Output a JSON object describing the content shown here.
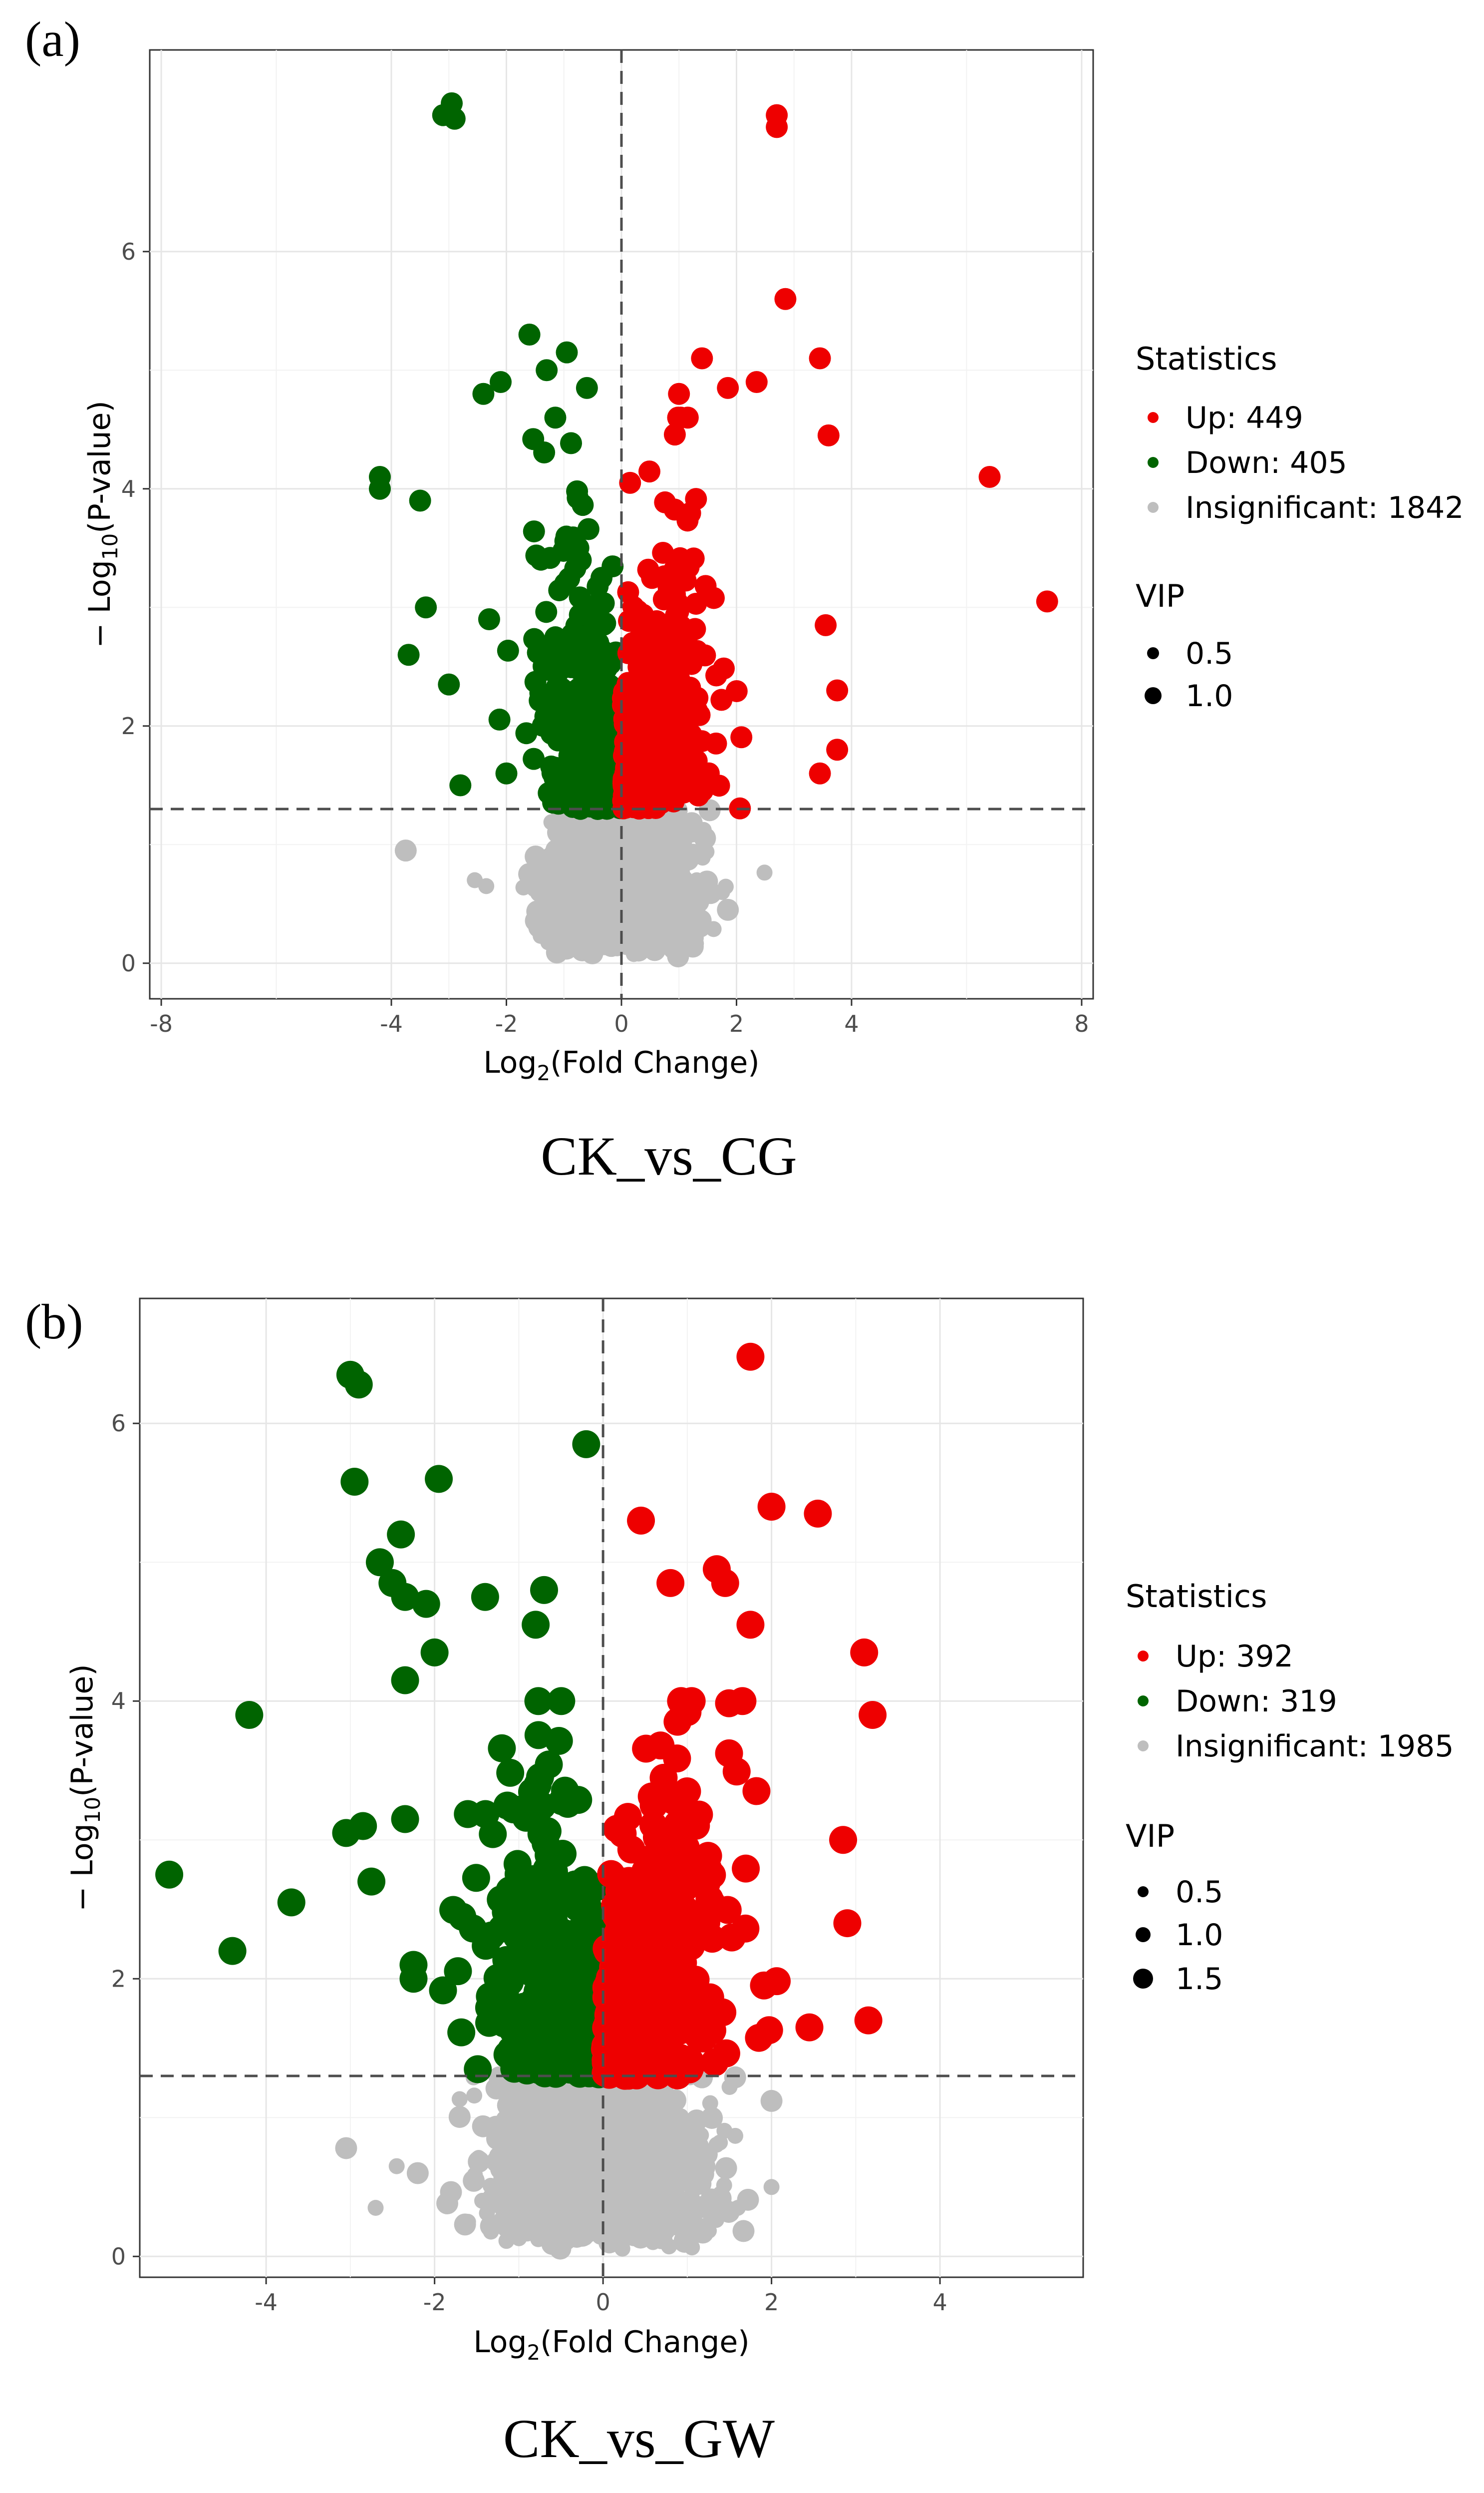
{
  "figure": {
    "panels": [
      {
        "label": "(a)",
        "caption": "CK_vs_CG",
        "legend": {
          "statistics_title": "Statistics",
          "statistics": [
            {
              "label": "Up: 449",
              "color": "#ee0000"
            },
            {
              "label": "Down: 405",
              "color": "#006400"
            },
            {
              "label": "Insignificant: 1842",
              "color": "#bebebe"
            }
          ],
          "vip_title": "VIP",
          "vip": [
            {
              "label": "0.5",
              "value": 0.5
            },
            {
              "label": "1.0",
              "value": 1.0
            }
          ]
        }
      },
      {
        "label": "(b)",
        "caption": "CK_vs_GW",
        "legend": {
          "statistics_title": "Statistics",
          "statistics": [
            {
              "label": "Up: 392",
              "color": "#ee0000"
            },
            {
              "label": "Down: 319",
              "color": "#006400"
            },
            {
              "label": "Insignificant: 1985",
              "color": "#bebebe"
            }
          ],
          "vip_title": "VIP",
          "vip": [
            {
              "label": "0.5",
              "value": 0.5
            },
            {
              "label": "1.0",
              "value": 1.0
            },
            {
              "label": "1.5",
              "value": 1.5
            }
          ]
        }
      }
    ]
  },
  "chart_data": [
    {
      "type": "scatter",
      "xlabel_main": "Log",
      "xlabel_sub": "2",
      "xlabel_rest": "(Fold Change)",
      "ylabel_prefix": "− Log",
      "ylabel_sub": "10",
      "ylabel_rest": "(P-value)",
      "xlim": [
        -8.2,
        8.2
      ],
      "ylim": [
        -0.3,
        7.7
      ],
      "x_ticks": [
        -8,
        -4,
        -2,
        0,
        2,
        4,
        8
      ],
      "x_tick_labels": [
        "-8",
        "-4",
        "-2",
        "0",
        "2",
        "4",
        "8"
      ],
      "y_ticks": [
        0,
        2,
        4,
        6
      ],
      "y_tick_labels": [
        "0",
        "2",
        "4",
        "6"
      ],
      "grid": true,
      "threshold_y": 1.3,
      "threshold_x": 0,
      "series": [
        {
          "name": "Up",
          "color": "#ee0000",
          "count": 449,
          "x_range": [
            0.02,
            2.6
          ],
          "y_range": [
            1.3,
            4.6
          ]
        },
        {
          "name": "Down",
          "color": "#006400",
          "count": 405,
          "x_range": [
            -2.6,
            -0.02
          ],
          "y_range": [
            1.3,
            4.6
          ]
        },
        {
          "name": "Insignificant",
          "color": "#bebebe",
          "count": 1842,
          "x_range": [
            -3.0,
            2.6
          ],
          "y_range": [
            0,
            1.3
          ]
        }
      ],
      "highlighted_points": [
        {
          "x": -3.1,
          "y": 7.15,
          "series": "Down",
          "vip": 1.0
        },
        {
          "x": -2.95,
          "y": 7.25,
          "series": "Down",
          "vip": 1.0
        },
        {
          "x": -2.9,
          "y": 7.12,
          "series": "Down",
          "vip": 1.0
        },
        {
          "x": -4.2,
          "y": 4.1,
          "series": "Down",
          "vip": 1.0
        },
        {
          "x": -4.2,
          "y": 4.0,
          "series": "Down",
          "vip": 1.0
        },
        {
          "x": -3.5,
          "y": 3.9,
          "series": "Down",
          "vip": 1.0
        },
        {
          "x": -1.6,
          "y": 5.3,
          "series": "Down",
          "vip": 1.0
        },
        {
          "x": -0.95,
          "y": 5.15,
          "series": "Down",
          "vip": 1.0
        },
        {
          "x": -1.3,
          "y": 5.0,
          "series": "Down",
          "vip": 1.0
        },
        {
          "x": -2.1,
          "y": 4.9,
          "series": "Down",
          "vip": 1.0
        },
        {
          "x": -2.4,
          "y": 4.8,
          "series": "Down",
          "vip": 1.0
        },
        {
          "x": -0.6,
          "y": 4.85,
          "series": "Down",
          "vip": 1.0
        },
        {
          "x": -1.15,
          "y": 4.6,
          "series": "Down",
          "vip": 1.0
        },
        {
          "x": -3.7,
          "y": 2.6,
          "series": "Down",
          "vip": 1.0
        },
        {
          "x": -3.4,
          "y": 3.0,
          "series": "Down",
          "vip": 1.0
        },
        {
          "x": -3.0,
          "y": 2.35,
          "series": "Down",
          "vip": 1.0
        },
        {
          "x": -2.8,
          "y": 1.5,
          "series": "Down",
          "vip": 1.0
        },
        {
          "x": -2.3,
          "y": 2.9,
          "series": "Down",
          "vip": 1.0
        },
        {
          "x": -2.0,
          "y": 1.6,
          "series": "Down",
          "vip": 1.0
        },
        {
          "x": 2.7,
          "y": 7.15,
          "series": "Up",
          "vip": 1.0
        },
        {
          "x": 2.7,
          "y": 7.05,
          "series": "Up",
          "vip": 1.0
        },
        {
          "x": 2.85,
          "y": 5.6,
          "series": "Up",
          "vip": 1.0
        },
        {
          "x": 3.45,
          "y": 5.1,
          "series": "Up",
          "vip": 1.0
        },
        {
          "x": 1.4,
          "y": 5.1,
          "series": "Up",
          "vip": 1.0
        },
        {
          "x": 2.35,
          "y": 4.9,
          "series": "Up",
          "vip": 1.0
        },
        {
          "x": 1.85,
          "y": 4.85,
          "series": "Up",
          "vip": 1.0
        },
        {
          "x": 1.0,
          "y": 4.8,
          "series": "Up",
          "vip": 1.0
        },
        {
          "x": 3.6,
          "y": 4.45,
          "series": "Up",
          "vip": 1.0
        },
        {
          "x": 6.4,
          "y": 4.1,
          "series": "Up",
          "vip": 1.0
        },
        {
          "x": 7.4,
          "y": 3.05,
          "series": "Up",
          "vip": 1.0
        },
        {
          "x": 3.55,
          "y": 2.85,
          "series": "Up",
          "vip": 1.0
        },
        {
          "x": 3.75,
          "y": 2.3,
          "series": "Up",
          "vip": 1.0
        },
        {
          "x": 3.75,
          "y": 1.8,
          "series": "Up",
          "vip": 1.0
        },
        {
          "x": 3.45,
          "y": 1.6,
          "series": "Up",
          "vip": 1.0
        },
        {
          "x": 0.15,
          "y": 4.05,
          "series": "Up",
          "vip": 1.0
        },
        {
          "x": -3.75,
          "y": 0.95,
          "series": "Insignificant",
          "vip": 1.0
        },
        {
          "x": -2.35,
          "y": 0.65,
          "series": "Insignificant",
          "vip": 0.5
        },
        {
          "x": -2.55,
          "y": 0.7,
          "series": "Insignificant",
          "vip": 0.5
        },
        {
          "x": 1.85,
          "y": 0.45,
          "series": "Insignificant",
          "vip": 1.0
        },
        {
          "x": 1.75,
          "y": 0.6,
          "series": "Insignificant",
          "vip": 0.5
        }
      ]
    },
    {
      "type": "scatter",
      "xlabel_main": "Log",
      "xlabel_sub": "2",
      "xlabel_rest": "(Fold Change)",
      "ylabel_prefix": "− Log",
      "ylabel_sub": "10",
      "ylabel_rest": "(P-value)",
      "xlim": [
        -5.5,
        5.7
      ],
      "ylim": [
        -0.15,
        6.9
      ],
      "x_ticks": [
        -4,
        -2,
        0,
        2,
        4
      ],
      "x_tick_labels": [
        "-4",
        "-2",
        "0",
        "2",
        "4"
      ],
      "y_ticks": [
        0,
        2,
        4,
        6
      ],
      "y_tick_labels": [
        "0",
        "2",
        "4",
        "6"
      ],
      "grid": true,
      "threshold_y": 1.3,
      "threshold_x": 0,
      "series": [
        {
          "name": "Up",
          "color": "#ee0000",
          "count": 392,
          "x_range": [
            0.02,
            2.2
          ],
          "y_range": [
            1.3,
            4.0
          ]
        },
        {
          "name": "Down",
          "color": "#006400",
          "count": 319,
          "x_range": [
            -1.9,
            -0.02
          ],
          "y_range": [
            1.3,
            4.0
          ]
        },
        {
          "name": "Insignificant",
          "color": "#bebebe",
          "count": 1985,
          "x_range": [
            -2.2,
            2.2
          ],
          "y_range": [
            0,
            1.3
          ]
        }
      ],
      "highlighted_points": [
        {
          "x": -3.0,
          "y": 6.35,
          "series": "Down",
          "vip": 1.5
        },
        {
          "x": -2.9,
          "y": 6.28,
          "series": "Down",
          "vip": 1.5
        },
        {
          "x": -0.2,
          "y": 5.85,
          "series": "Down",
          "vip": 1.5
        },
        {
          "x": -2.95,
          "y": 5.58,
          "series": "Down",
          "vip": 1.5
        },
        {
          "x": -1.95,
          "y": 5.6,
          "series": "Down",
          "vip": 1.5
        },
        {
          "x": -2.4,
          "y": 5.2,
          "series": "Down",
          "vip": 1.5
        },
        {
          "x": -2.65,
          "y": 5.0,
          "series": "Down",
          "vip": 1.5
        },
        {
          "x": -2.5,
          "y": 4.85,
          "series": "Down",
          "vip": 1.5
        },
        {
          "x": -2.35,
          "y": 4.75,
          "series": "Down",
          "vip": 1.5
        },
        {
          "x": -2.1,
          "y": 4.7,
          "series": "Down",
          "vip": 1.5
        },
        {
          "x": -1.4,
          "y": 4.75,
          "series": "Down",
          "vip": 1.5
        },
        {
          "x": -0.7,
          "y": 4.8,
          "series": "Down",
          "vip": 1.5
        },
        {
          "x": -0.8,
          "y": 4.55,
          "series": "Down",
          "vip": 1.5
        },
        {
          "x": -2.0,
          "y": 4.35,
          "series": "Down",
          "vip": 1.5
        },
        {
          "x": -2.35,
          "y": 4.15,
          "series": "Down",
          "vip": 1.5
        },
        {
          "x": -4.2,
          "y": 3.9,
          "series": "Down",
          "vip": 1.5
        },
        {
          "x": -5.15,
          "y": 2.75,
          "series": "Down",
          "vip": 1.5
        },
        {
          "x": -3.7,
          "y": 2.55,
          "series": "Down",
          "vip": 1.5
        },
        {
          "x": -4.4,
          "y": 2.2,
          "series": "Down",
          "vip": 1.5
        },
        {
          "x": -3.05,
          "y": 3.05,
          "series": "Down",
          "vip": 1.5
        },
        {
          "x": -2.85,
          "y": 3.1,
          "series": "Down",
          "vip": 1.5
        },
        {
          "x": -2.75,
          "y": 2.7,
          "series": "Down",
          "vip": 1.5
        },
        {
          "x": -2.35,
          "y": 3.15,
          "series": "Down",
          "vip": 1.5
        },
        {
          "x": -2.25,
          "y": 2.1,
          "series": "Down",
          "vip": 1.5
        },
        {
          "x": -2.25,
          "y": 2.0,
          "series": "Down",
          "vip": 1.5
        },
        {
          "x": 1.75,
          "y": 6.48,
          "series": "Up",
          "vip": 1.5
        },
        {
          "x": 2.0,
          "y": 5.4,
          "series": "Up",
          "vip": 1.5
        },
        {
          "x": 2.55,
          "y": 5.35,
          "series": "Up",
          "vip": 1.5
        },
        {
          "x": 0.45,
          "y": 5.3,
          "series": "Up",
          "vip": 1.5
        },
        {
          "x": 1.35,
          "y": 4.95,
          "series": "Up",
          "vip": 1.5
        },
        {
          "x": 1.45,
          "y": 4.85,
          "series": "Up",
          "vip": 1.5
        },
        {
          "x": 0.8,
          "y": 4.85,
          "series": "Up",
          "vip": 1.5
        },
        {
          "x": 1.75,
          "y": 4.55,
          "series": "Up",
          "vip": 1.5
        },
        {
          "x": 3.1,
          "y": 4.35,
          "series": "Up",
          "vip": 1.5
        },
        {
          "x": 3.2,
          "y": 3.9,
          "series": "Up",
          "vip": 1.5
        },
        {
          "x": 2.85,
          "y": 3.0,
          "series": "Up",
          "vip": 1.5
        },
        {
          "x": 2.9,
          "y": 2.4,
          "series": "Up",
          "vip": 1.5
        },
        {
          "x": 3.15,
          "y": 1.7,
          "series": "Up",
          "vip": 1.5
        },
        {
          "x": 2.45,
          "y": 1.65,
          "series": "Up",
          "vip": 1.5
        },
        {
          "x": -3.05,
          "y": 0.78,
          "series": "Insignificant",
          "vip": 1.0
        },
        {
          "x": -2.2,
          "y": 0.6,
          "series": "Insignificant",
          "vip": 1.0
        },
        {
          "x": -2.45,
          "y": 0.65,
          "series": "Insignificant",
          "vip": 0.5
        },
        {
          "x": -2.7,
          "y": 0.35,
          "series": "Insignificant",
          "vip": 0.5
        },
        {
          "x": 2.0,
          "y": 1.12,
          "series": "Insignificant",
          "vip": 1.0
        },
        {
          "x": 2.0,
          "y": 0.5,
          "series": "Insignificant",
          "vip": 0.5
        },
        {
          "x": 1.4,
          "y": 0.35,
          "series": "Insignificant",
          "vip": 0.5
        },
        {
          "x": 1.6,
          "y": 0.35,
          "series": "Insignificant",
          "vip": 0.5
        }
      ]
    }
  ]
}
